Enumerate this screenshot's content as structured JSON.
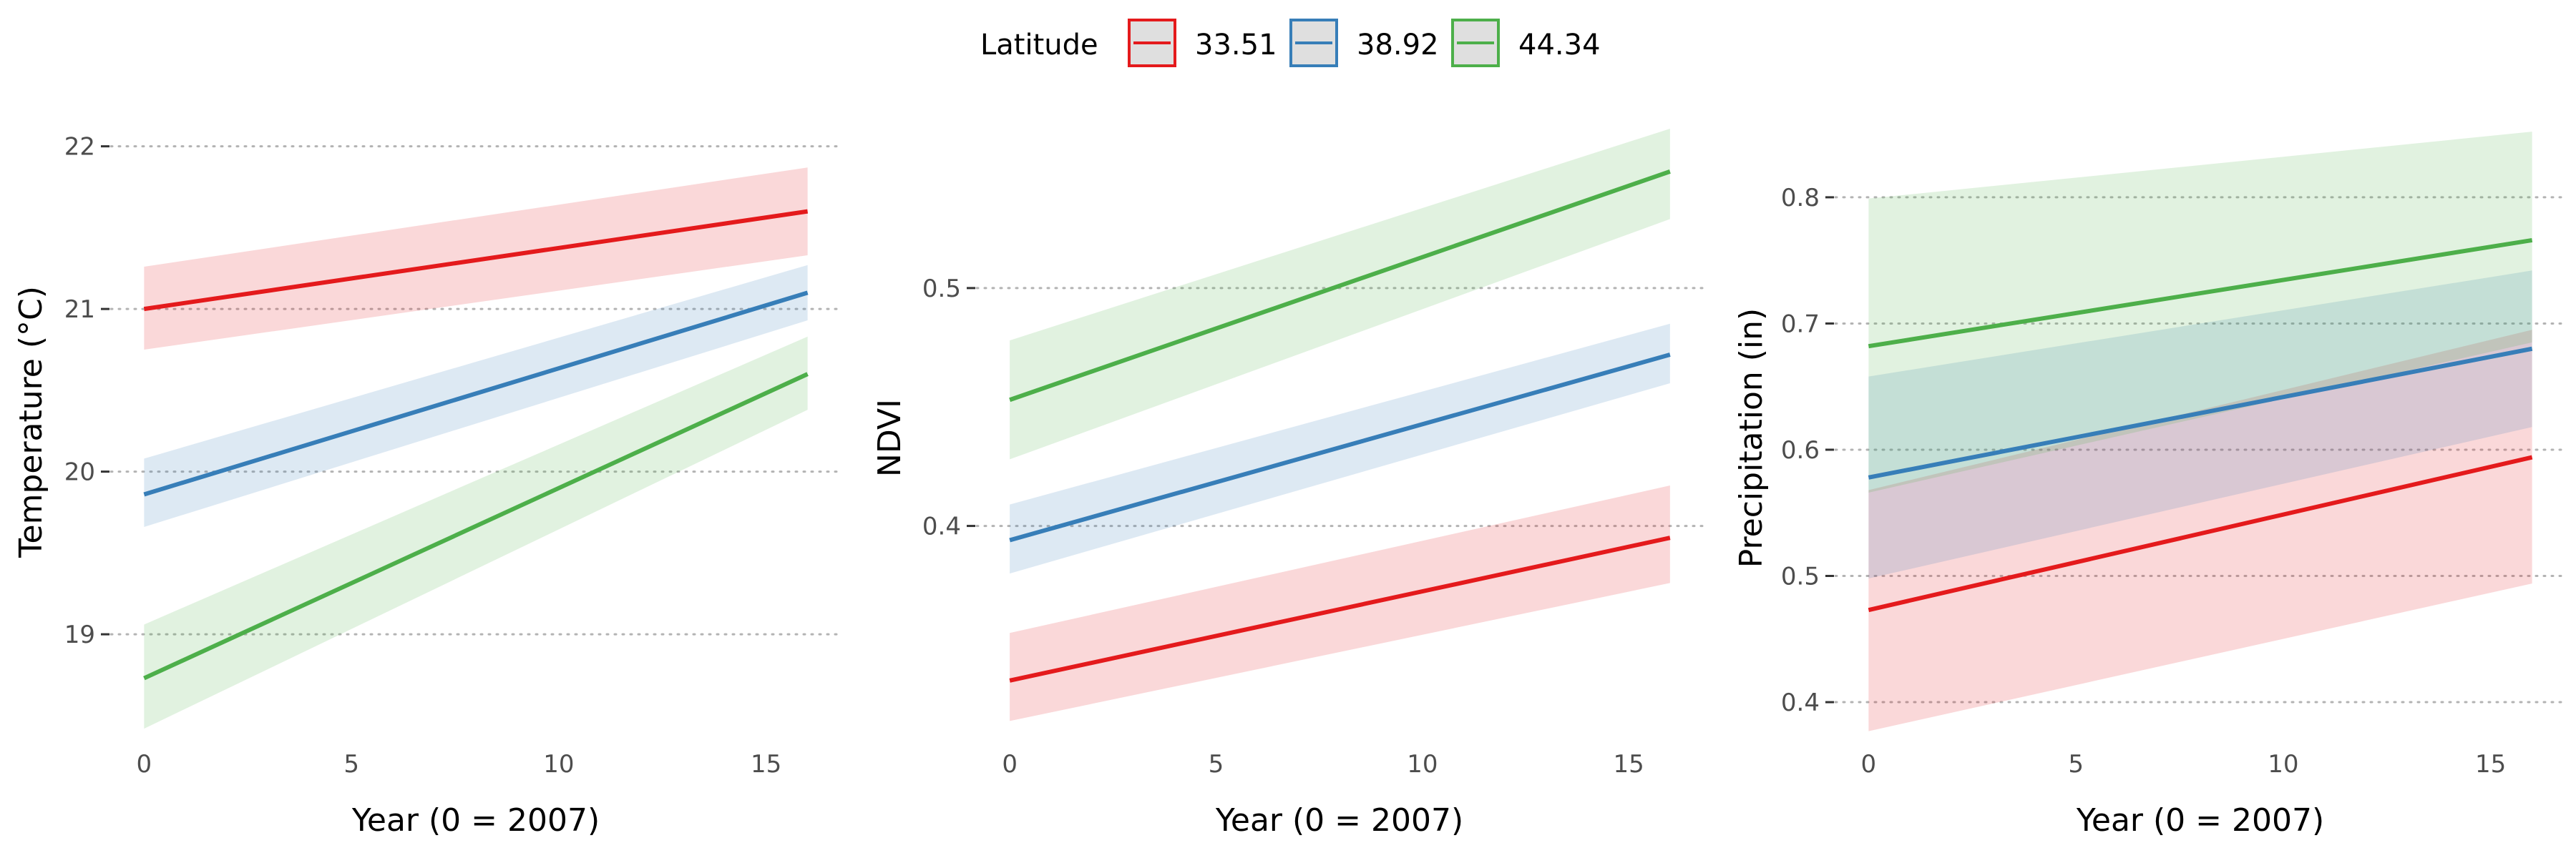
{
  "legend": {
    "title": "Latitude",
    "entries": [
      {
        "label": "33.51",
        "color": "#e41a1c"
      },
      {
        "label": "38.92",
        "color": "#377eb8"
      },
      {
        "label": "44.34",
        "color": "#4daf4a"
      }
    ]
  },
  "chart_data": [
    {
      "type": "line",
      "xlabel": "Year (0 = 2007)",
      "ylabel": "Temperature (°C)",
      "xlim": [
        -0.8,
        16.8
      ],
      "ylim": [
        18.35,
        22.35
      ],
      "xticks": [
        0,
        5,
        10,
        15
      ],
      "yticks": [
        19,
        20,
        21,
        22
      ],
      "grid": "horizontal dotted",
      "x": [
        0,
        16
      ],
      "series": [
        {
          "name": "33.51",
          "color": "#e41a1c",
          "y": [
            21.0,
            21.6
          ],
          "lower": [
            20.75,
            21.33
          ],
          "upper": [
            21.26,
            21.87
          ]
        },
        {
          "name": "38.92",
          "color": "#377eb8",
          "y": [
            19.86,
            21.1
          ],
          "lower": [
            19.66,
            20.93
          ],
          "upper": [
            20.08,
            21.27
          ]
        },
        {
          "name": "44.34",
          "color": "#4daf4a",
          "y": [
            18.73,
            20.6
          ],
          "lower": [
            18.42,
            20.38
          ],
          "upper": [
            19.06,
            20.83
          ]
        }
      ]
    },
    {
      "type": "line",
      "xlabel": "Year (0 = 2007)",
      "ylabel": "NDVI",
      "xlim": [
        -0.8,
        16.8
      ],
      "ylim": [
        0.31,
        0.57
      ],
      "xticks": [
        0,
        5,
        10,
        15
      ],
      "yticks": [
        0.4,
        0.5
      ],
      "grid": "horizontal dotted",
      "x": [
        0,
        16
      ],
      "series": [
        {
          "name": "33.51",
          "color": "#e41a1c",
          "y": [
            0.335,
            0.395
          ],
          "lower": [
            0.318,
            0.376
          ],
          "upper": [
            0.355,
            0.417
          ]
        },
        {
          "name": "38.92",
          "color": "#377eb8",
          "y": [
            0.394,
            0.472
          ],
          "lower": [
            0.38,
            0.46
          ],
          "upper": [
            0.409,
            0.485
          ]
        },
        {
          "name": "44.34",
          "color": "#4daf4a",
          "y": [
            0.453,
            0.549
          ],
          "lower": [
            0.428,
            0.529
          ],
          "upper": [
            0.478,
            0.567
          ]
        }
      ]
    },
    {
      "type": "line",
      "xlabel": "Year (0 = 2007)",
      "ylabel": "Precipitation (in)",
      "xlim": [
        -0.8,
        16.8
      ],
      "ylim": [
        0.37,
        0.86
      ],
      "xticks": [
        0,
        5,
        10,
        15
      ],
      "yticks": [
        0.4,
        0.5,
        0.6,
        0.7,
        0.8
      ],
      "grid": "horizontal dotted",
      "x": [
        0,
        16
      ],
      "series": [
        {
          "name": "33.51",
          "color": "#e41a1c",
          "y": [
            0.473,
            0.594
          ],
          "lower": [
            0.377,
            0.494
          ],
          "upper": [
            0.568,
            0.695
          ]
        },
        {
          "name": "38.92",
          "color": "#377eb8",
          "y": [
            0.578,
            0.68
          ],
          "lower": [
            0.498,
            0.618
          ],
          "upper": [
            0.658,
            0.742
          ]
        },
        {
          "name": "44.34",
          "color": "#4daf4a",
          "y": [
            0.682,
            0.766
          ],
          "lower": [
            0.566,
            0.685
          ],
          "upper": [
            0.799,
            0.852
          ]
        }
      ]
    }
  ]
}
